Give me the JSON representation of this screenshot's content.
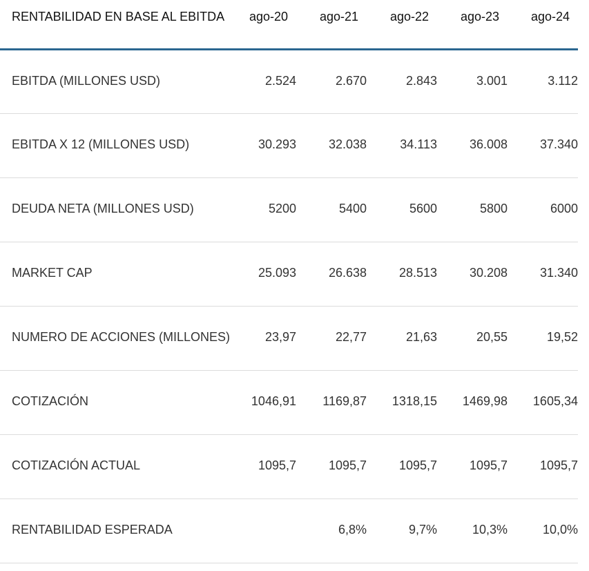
{
  "table": {
    "title": "RENTABILIDAD EN BASE AL EBITDA",
    "columns": [
      "ago-20",
      "ago-21",
      "ago-22",
      "ago-23",
      "ago-24"
    ],
    "rows": [
      {
        "label": "EBITDA (MILLONES USD)",
        "values": [
          "2.524",
          "2.670",
          "2.843",
          "3.001",
          "3.112"
        ]
      },
      {
        "label": "EBITDA X 12 (MILLONES USD)",
        "values": [
          "30.293",
          "32.038",
          "34.113",
          "36.008",
          "37.340"
        ]
      },
      {
        "label": "DEUDA NETA (MILLONES USD)",
        "values": [
          "5200",
          "5400",
          "5600",
          "5800",
          "6000"
        ]
      },
      {
        "label": "MARKET CAP",
        "values": [
          "25.093",
          "26.638",
          "28.513",
          "30.208",
          "31.340"
        ]
      },
      {
        "label": "NUMERO DE ACCIONES (MILLONES)",
        "values": [
          "23,97",
          "22,77",
          "21,63",
          "20,55",
          "19,52"
        ]
      },
      {
        "label": "COTIZACIÓN",
        "values": [
          "1046,91",
          "1169,87",
          "1318,15",
          "1469,98",
          "1605,34"
        ]
      },
      {
        "label": "COTIZACIÓN ACTUAL",
        "values": [
          "1095,7",
          "1095,7",
          "1095,7",
          "1095,7",
          "1095,7"
        ]
      },
      {
        "label": "RENTABILIDAD ESPERADA",
        "values": [
          "",
          "6,8%",
          "9,7%",
          "10,3%",
          "10,0%"
        ]
      }
    ]
  },
  "colors": {
    "header_rule": "#2a6690",
    "row_rule": "#dcdcdc",
    "text": "#333333"
  }
}
